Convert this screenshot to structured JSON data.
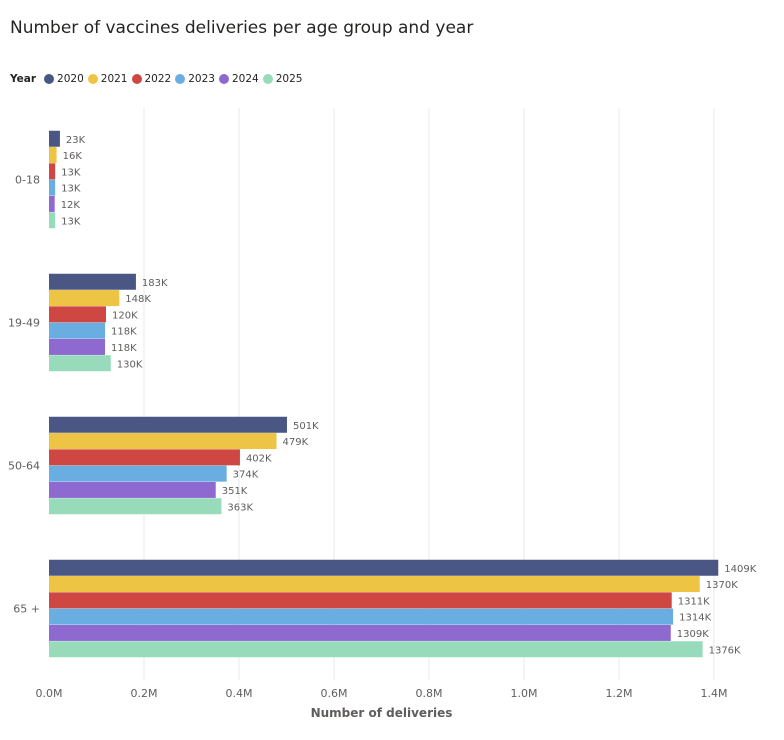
{
  "chart_data": {
    "type": "bar",
    "orientation": "horizontal",
    "title": "Number of vaccines deliveries per age group and year",
    "legend_title": "Year",
    "legend_position": "top-left",
    "xlabel": "Number of deliveries",
    "ylabel": "",
    "xlim": [
      0,
      1400000
    ],
    "xticks": [
      0,
      200000,
      400000,
      600000,
      800000,
      1000000,
      1200000,
      1400000
    ],
    "xtick_labels": [
      "0.0M",
      "0.2M",
      "0.4M",
      "0.6M",
      "0.8M",
      "1.0M",
      "1.2M",
      "1.4M"
    ],
    "grid": true,
    "categories": [
      "0-18",
      "19-49",
      "50-64",
      "65 +"
    ],
    "series": [
      {
        "name": "2020",
        "color": "#4a5684",
        "values": [
          23000,
          183000,
          501000,
          1409000
        ],
        "labels": [
          "23K",
          "183K",
          "501K",
          "1409K"
        ]
      },
      {
        "name": "2021",
        "color": "#edc443",
        "values": [
          16000,
          148000,
          479000,
          1370000
        ],
        "labels": [
          "16K",
          "148K",
          "479K",
          "1370K"
        ]
      },
      {
        "name": "2022",
        "color": "#cf4743",
        "values": [
          13000,
          120000,
          402000,
          1311000
        ],
        "labels": [
          "13K",
          "120K",
          "402K",
          "1311K"
        ]
      },
      {
        "name": "2023",
        "color": "#6aaee1",
        "values": [
          13000,
          118000,
          374000,
          1314000
        ],
        "labels": [
          "13K",
          "118K",
          "374K",
          "1314K"
        ]
      },
      {
        "name": "2024",
        "color": "#8e6ad0",
        "values": [
          12000,
          118000,
          351000,
          1309000
        ],
        "labels": [
          "12K",
          "118K",
          "351K",
          "1309K"
        ]
      },
      {
        "name": "2025",
        "color": "#97dbbb",
        "values": [
          13000,
          130000,
          363000,
          1376000
        ],
        "labels": [
          "13K",
          "130K",
          "363K",
          "1376K"
        ]
      }
    ]
  }
}
